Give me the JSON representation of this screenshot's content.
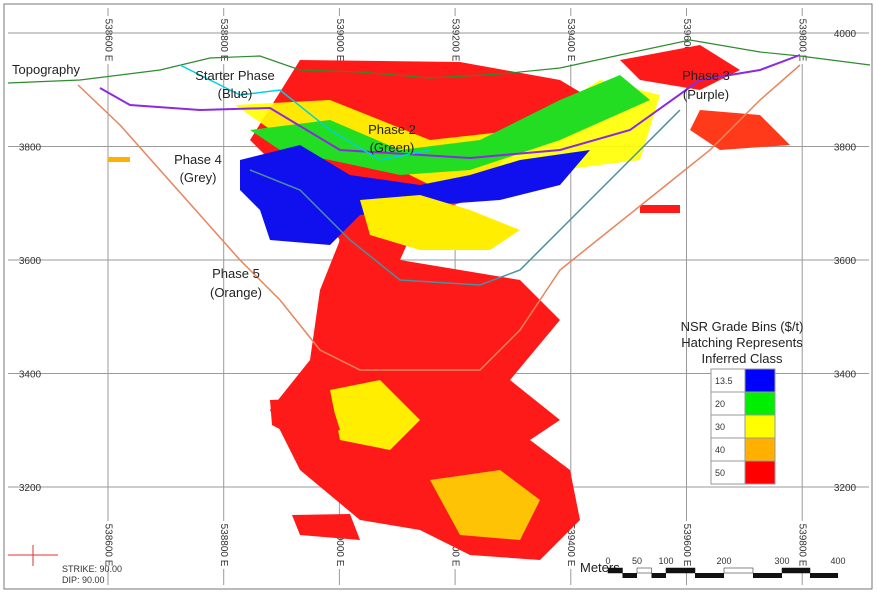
{
  "eastings": [
    "538600 E",
    "538800 E",
    "539000 E",
    "539200 E",
    "539400 E",
    "539600 E",
    "539800 E"
  ],
  "elevations": [
    "4000",
    "3800",
    "3600",
    "3400",
    "3200"
  ],
  "labels": {
    "topography": "Topography",
    "starter_phase": [
      "Starter Phase",
      "(Blue)"
    ],
    "phase2": [
      "Phase 2",
      "(Green)"
    ],
    "phase3": [
      "Phase 3",
      "(Purple)"
    ],
    "phase4": [
      "Phase 4",
      "(Grey)"
    ],
    "phase5": [
      "Phase 5",
      "(Orange)"
    ]
  },
  "legend": {
    "title": [
      "NSR Grade Bins ($/t)",
      "Hatching Represents",
      "Inferred Class"
    ],
    "bins": [
      {
        "label": "13.5",
        "color": "#0000ff"
      },
      {
        "label": "20",
        "color": "#00ee00"
      },
      {
        "label": "30",
        "color": "#ffff00"
      },
      {
        "label": "40",
        "color": "#ffb000"
      },
      {
        "label": "50",
        "color": "#ff0000"
      }
    ]
  },
  "scale_bar": {
    "unit": "Meters",
    "ticks": [
      "0",
      "50",
      "100",
      "200",
      "300",
      "400"
    ]
  },
  "orientation": {
    "strike": "STRIKE: 90.00",
    "dip": "DIP: 90.00"
  }
}
